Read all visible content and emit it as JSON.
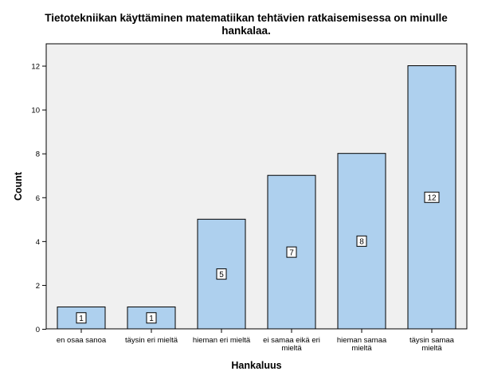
{
  "chart_data": {
    "type": "bar",
    "title_lines": [
      "Tietotekniikan käyttäminen matematiikan tehtävien ratkaisemisessa on minulle",
      "hankalaa."
    ],
    "xlabel": "Hankaluus",
    "ylabel": "Count",
    "categories": [
      [
        "en osaa sanoa"
      ],
      [
        "täysin eri mieltä"
      ],
      [
        "hieman eri mieltä"
      ],
      [
        "ei samaa eikä eri",
        "mieltä"
      ],
      [
        "hieman samaa",
        "mieltä"
      ],
      [
        "täysin samaa",
        "mieltä"
      ]
    ],
    "values": [
      1,
      1,
      5,
      7,
      8,
      12
    ],
    "ylim": [
      0,
      13
    ],
    "yticks": [
      0,
      2,
      4,
      6,
      8,
      10,
      12
    ],
    "grid": false,
    "legend": "none",
    "colors": {
      "plot_background": "#f0f0f0",
      "bar_fill": "#aed0ee",
      "bar_stroke": "#000000",
      "axis": "#000000",
      "label_box_fill": "#ffffff"
    }
  }
}
